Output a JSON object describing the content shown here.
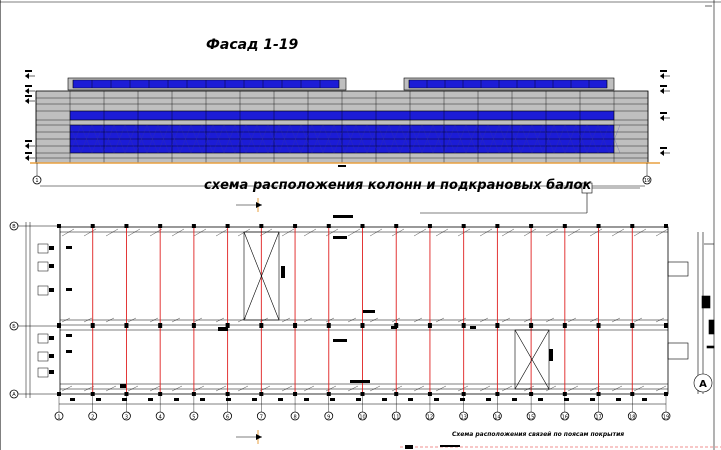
{
  "titles": {
    "facade": "Фасад 1-19",
    "columns_scheme": "схема расположения колонн и подкрановых балок",
    "bracing_scheme": "Схема расположения связей по поясам покрытия"
  },
  "axes": {
    "columns": [
      "1",
      "2",
      "3",
      "4",
      "5",
      "6",
      "7",
      "8",
      "9",
      "10",
      "11",
      "12",
      "13",
      "14",
      "15",
      "16",
      "17",
      "18",
      "19"
    ],
    "rows": [
      "В",
      "Б",
      "А"
    ],
    "facade_left": "1",
    "facade_right": "19",
    "section_marker": "А"
  },
  "colors": {
    "wall": "#bfbfbf",
    "glazing": "#1c1cd6",
    "column_line": "#e02020",
    "ink": "#000000",
    "accent_orange": "#e8a040"
  }
}
